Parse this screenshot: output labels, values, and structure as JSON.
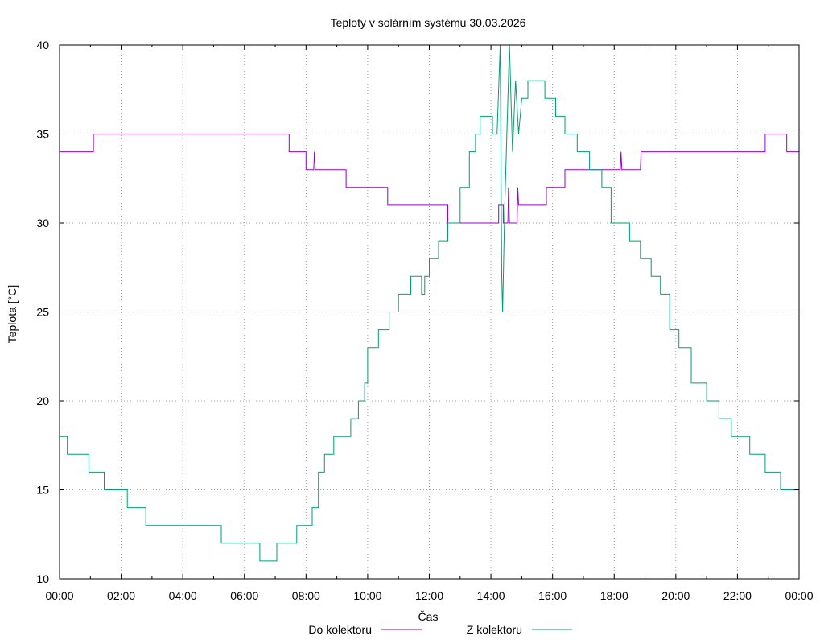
{
  "chart_data": {
    "type": "line",
    "title": "Teploty v solárním systému 30.03.2026",
    "xlabel": "Čas",
    "ylabel": "Teplota [°C]",
    "xlim": [
      "00:00",
      "24:00"
    ],
    "ylim": [
      10,
      40
    ],
    "grid": true,
    "legend_position": "bottom",
    "x_ticks": [
      "00:00",
      "02:00",
      "04:00",
      "06:00",
      "08:00",
      "10:00",
      "12:00",
      "14:00",
      "16:00",
      "18:00",
      "20:00",
      "22:00",
      "00:00"
    ],
    "y_ticks": [
      "10",
      "15",
      "20",
      "25",
      "30",
      "35",
      "40"
    ],
    "x_unit": "hours since 00:00",
    "series": [
      {
        "name": "Do kolektoru",
        "color": "#9400d3",
        "points": [
          [
            0,
            34
          ],
          [
            1.1,
            34
          ],
          [
            1.1,
            35
          ],
          [
            7.45,
            35
          ],
          [
            7.45,
            34
          ],
          [
            8.0,
            34
          ],
          [
            8.0,
            33
          ],
          [
            8.25,
            33
          ],
          [
            8.27,
            34
          ],
          [
            8.3,
            33
          ],
          [
            9.3,
            33
          ],
          [
            9.3,
            32
          ],
          [
            10.65,
            32
          ],
          [
            10.65,
            31
          ],
          [
            12.6,
            31
          ],
          [
            12.6,
            30
          ],
          [
            14.25,
            30
          ],
          [
            14.25,
            31
          ],
          [
            14.4,
            31
          ],
          [
            14.4,
            30
          ],
          [
            14.55,
            30
          ],
          [
            14.57,
            32
          ],
          [
            14.6,
            30
          ],
          [
            14.85,
            30
          ],
          [
            14.87,
            32
          ],
          [
            14.9,
            31
          ],
          [
            15.8,
            31
          ],
          [
            15.8,
            32
          ],
          [
            16.4,
            32
          ],
          [
            16.4,
            33
          ],
          [
            18.2,
            33
          ],
          [
            18.22,
            34
          ],
          [
            18.25,
            33
          ],
          [
            18.85,
            33
          ],
          [
            18.87,
            34
          ],
          [
            18.9,
            34
          ],
          [
            22.9,
            34
          ],
          [
            22.9,
            35
          ],
          [
            23.6,
            35
          ],
          [
            23.6,
            34
          ],
          [
            24,
            34
          ]
        ]
      },
      {
        "name": "Z kolektoru",
        "color": "#009e73",
        "points": [
          [
            0,
            18
          ],
          [
            0.25,
            18
          ],
          [
            0.25,
            17
          ],
          [
            0.95,
            17
          ],
          [
            0.95,
            16
          ],
          [
            1.45,
            16
          ],
          [
            1.45,
            15
          ],
          [
            2.2,
            15
          ],
          [
            2.2,
            14
          ],
          [
            2.8,
            14
          ],
          [
            2.8,
            13
          ],
          [
            5.25,
            13
          ],
          [
            5.25,
            12
          ],
          [
            6.5,
            12
          ],
          [
            6.5,
            11
          ],
          [
            7.05,
            11
          ],
          [
            7.05,
            12
          ],
          [
            7.7,
            12
          ],
          [
            7.7,
            13
          ],
          [
            8.2,
            13
          ],
          [
            8.2,
            14
          ],
          [
            8.4,
            14
          ],
          [
            8.4,
            16
          ],
          [
            8.6,
            16
          ],
          [
            8.6,
            17
          ],
          [
            8.9,
            17
          ],
          [
            8.9,
            18
          ],
          [
            9.45,
            18
          ],
          [
            9.45,
            19
          ],
          [
            9.7,
            19
          ],
          [
            9.7,
            20
          ],
          [
            9.9,
            20
          ],
          [
            9.9,
            21
          ],
          [
            10.0,
            21
          ],
          [
            10.0,
            23
          ],
          [
            10.35,
            23
          ],
          [
            10.35,
            24
          ],
          [
            10.7,
            24
          ],
          [
            10.7,
            25
          ],
          [
            11.0,
            25
          ],
          [
            11.0,
            26
          ],
          [
            11.4,
            26
          ],
          [
            11.4,
            27
          ],
          [
            11.75,
            27
          ],
          [
            11.75,
            26
          ],
          [
            11.85,
            26
          ],
          [
            11.85,
            27
          ],
          [
            12.0,
            27
          ],
          [
            12.0,
            28
          ],
          [
            12.3,
            28
          ],
          [
            12.3,
            29
          ],
          [
            12.6,
            29
          ],
          [
            12.6,
            30
          ],
          [
            13.0,
            30
          ],
          [
            13.0,
            32
          ],
          [
            13.3,
            32
          ],
          [
            13.3,
            34
          ],
          [
            13.5,
            34
          ],
          [
            13.5,
            35
          ],
          [
            13.65,
            35
          ],
          [
            13.65,
            36
          ],
          [
            14.05,
            36
          ],
          [
            14.05,
            35
          ],
          [
            14.2,
            35
          ],
          [
            14.3,
            40
          ],
          [
            14.35,
            27
          ],
          [
            14.38,
            25
          ],
          [
            14.45,
            31
          ],
          [
            14.6,
            40
          ],
          [
            14.7,
            34
          ],
          [
            14.8,
            38
          ],
          [
            14.9,
            35
          ],
          [
            15.0,
            37
          ],
          [
            15.2,
            37
          ],
          [
            15.2,
            38
          ],
          [
            15.75,
            38
          ],
          [
            15.75,
            37
          ],
          [
            16.1,
            37
          ],
          [
            16.1,
            36
          ],
          [
            16.4,
            36
          ],
          [
            16.4,
            35
          ],
          [
            16.8,
            35
          ],
          [
            16.8,
            34
          ],
          [
            17.2,
            34
          ],
          [
            17.2,
            33
          ],
          [
            17.6,
            33
          ],
          [
            17.6,
            32
          ],
          [
            17.9,
            32
          ],
          [
            17.9,
            30
          ],
          [
            18.5,
            30
          ],
          [
            18.5,
            29
          ],
          [
            18.85,
            29
          ],
          [
            18.85,
            28
          ],
          [
            19.2,
            28
          ],
          [
            19.2,
            27
          ],
          [
            19.5,
            27
          ],
          [
            19.5,
            26
          ],
          [
            19.8,
            26
          ],
          [
            19.8,
            24
          ],
          [
            20.1,
            24
          ],
          [
            20.1,
            23
          ],
          [
            20.5,
            23
          ],
          [
            20.5,
            21
          ],
          [
            21.0,
            21
          ],
          [
            21.0,
            20
          ],
          [
            21.4,
            20
          ],
          [
            21.4,
            19
          ],
          [
            21.8,
            19
          ],
          [
            21.8,
            18
          ],
          [
            22.4,
            18
          ],
          [
            22.4,
            17
          ],
          [
            22.9,
            17
          ],
          [
            22.9,
            16
          ],
          [
            23.4,
            16
          ],
          [
            23.4,
            15
          ],
          [
            24,
            15
          ]
        ]
      }
    ]
  }
}
